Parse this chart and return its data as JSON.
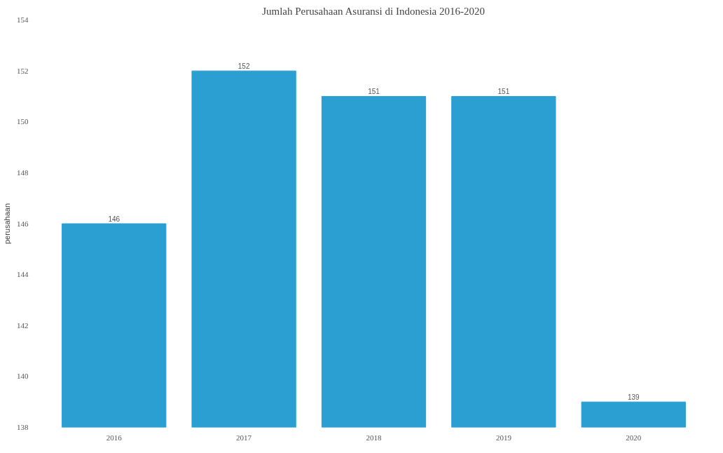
{
  "chart_data": {
    "type": "bar",
    "title": "Jumlah Perusahaan Asuransi di Indonesia 2016-2020",
    "ylabel": "perusahaan",
    "categories": [
      "2016",
      "2017",
      "2018",
      "2019",
      "2020"
    ],
    "values": [
      146,
      152,
      151,
      151,
      139
    ],
    "color": "#2b9fd2",
    "ylim": [
      138,
      154
    ],
    "yticks": [
      138,
      140,
      142,
      144,
      146,
      148,
      150,
      152,
      154
    ],
    "data_labels": true
  }
}
